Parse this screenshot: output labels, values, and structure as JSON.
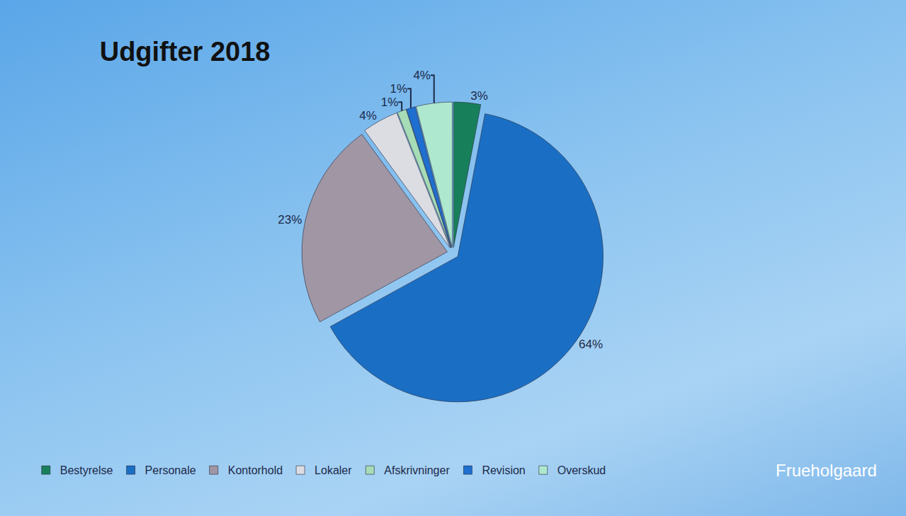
{
  "chart_data": {
    "type": "pie",
    "title": "Udgifter 2018",
    "categories": [
      "Bestyrelse",
      "Personale",
      "Kontorhold",
      "Lokaler",
      "Afskrivninger",
      "Revision",
      "Overskud"
    ],
    "values": [
      3,
      64,
      23,
      4,
      1,
      1,
      4
    ],
    "value_labels": [
      "3%",
      "64%",
      "23%",
      "4%",
      "1%",
      "1%",
      "4%"
    ],
    "colors": [
      "#17805a",
      "#1a6fc4",
      "#a096a4",
      "#dcdde3",
      "#a6dcb6",
      "#1f6fd0",
      "#aee8cf"
    ],
    "data_labels": true,
    "legend": "bottom",
    "annotations": [
      "Frueholgaard"
    ]
  }
}
